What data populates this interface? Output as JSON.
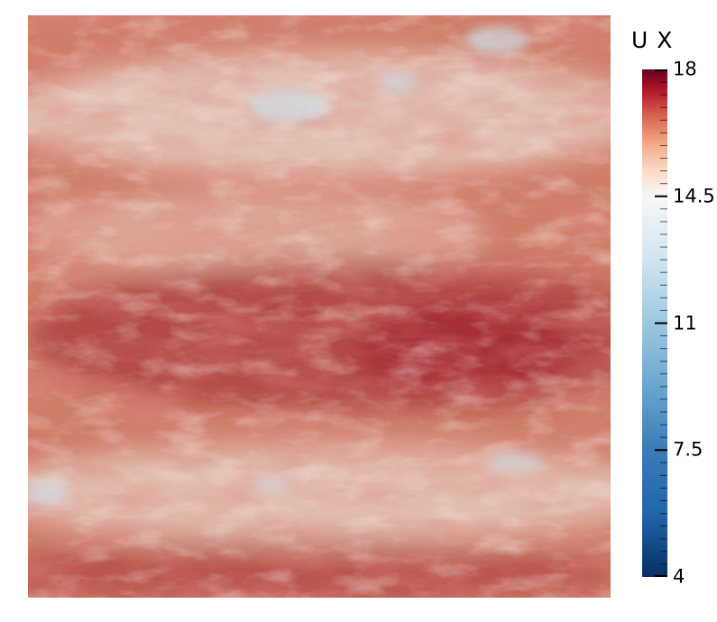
{
  "legend": {
    "title": "U X",
    "min": 4,
    "max": 18,
    "tick_labels": [
      "18",
      "14.5",
      "11",
      "7.5",
      "4"
    ],
    "colormap": [
      {
        "value": 4,
        "color": "#053061"
      },
      {
        "value": 5.75,
        "color": "#2166ac"
      },
      {
        "value": 7.5,
        "color": "#3a7bb8"
      },
      {
        "value": 9.25,
        "color": "#6aa6cf"
      },
      {
        "value": 11,
        "color": "#9cc8e0"
      },
      {
        "value": 12.75,
        "color": "#d1e5f0"
      },
      {
        "value": 14.5,
        "color": "#f7f7f7"
      },
      {
        "value": 15.25,
        "color": "#fbd8c4"
      },
      {
        "value": 16,
        "color": "#f4a582"
      },
      {
        "value": 16.75,
        "color": "#d6604d"
      },
      {
        "value": 17.4,
        "color": "#b2182b"
      },
      {
        "value": 18,
        "color": "#67001f"
      }
    ]
  },
  "field": {
    "name": "U X",
    "colors": {
      "base": "#cf7e68",
      "high": "#9a1d2a",
      "low": "#e8d5cc",
      "min_patch": "#cfdde7"
    }
  }
}
